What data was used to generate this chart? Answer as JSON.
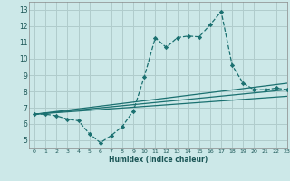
{
  "xlabel": "Humidex (Indice chaleur)",
  "background_color": "#cce8e8",
  "grid_color": "#b0cccc",
  "line_color": "#1a7070",
  "xlim": [
    -0.5,
    23
  ],
  "ylim": [
    4.5,
    13.5
  ],
  "xticks": [
    0,
    1,
    2,
    3,
    4,
    5,
    6,
    7,
    8,
    9,
    10,
    11,
    12,
    13,
    14,
    15,
    16,
    17,
    18,
    19,
    20,
    21,
    22,
    23
  ],
  "yticks": [
    5,
    6,
    7,
    8,
    9,
    10,
    11,
    12,
    13
  ],
  "series1_x": [
    0,
    1,
    2,
    3,
    4,
    5,
    6,
    7,
    8,
    9,
    10,
    11,
    12,
    13,
    14,
    15,
    16,
    17,
    18,
    19,
    20,
    21,
    22,
    23
  ],
  "series1_y": [
    6.6,
    6.6,
    6.5,
    6.3,
    6.2,
    5.4,
    4.85,
    5.3,
    5.85,
    6.8,
    8.9,
    11.3,
    10.7,
    11.3,
    11.4,
    11.35,
    12.1,
    12.9,
    9.6,
    8.5,
    8.1,
    8.1,
    8.2,
    8.1
  ],
  "series2_x": [
    0,
    23
  ],
  "series2_y": [
    6.6,
    8.1
  ],
  "series3_x": [
    0,
    23
  ],
  "series3_y": [
    6.6,
    7.7
  ],
  "series4_x": [
    0,
    23
  ],
  "series4_y": [
    6.6,
    8.5
  ]
}
